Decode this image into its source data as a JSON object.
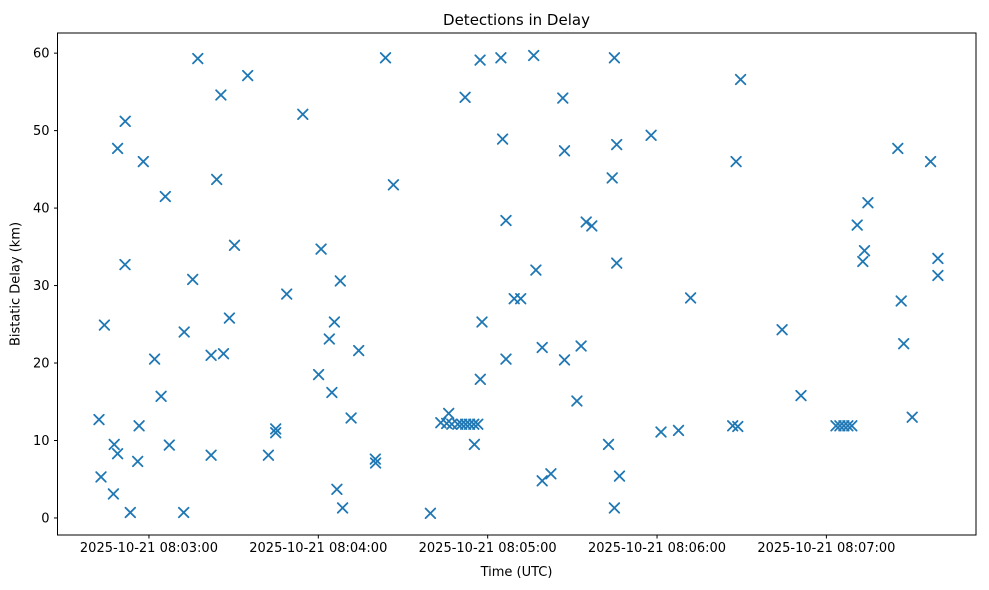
{
  "chart_data": {
    "type": "scatter",
    "title": "Detections in Delay",
    "xlabel": "Time (UTC)",
    "ylabel": "Bistatic Delay (km)",
    "grid": false,
    "legend": false,
    "marker": {
      "style": "x",
      "color": "#1f77b4"
    },
    "x_axis": {
      "unit": "seconds after 2025-10-21 08:03:00 UTC",
      "range": [
        -32.4,
        293.0
      ],
      "tick_values": [
        0,
        60,
        120,
        180,
        240
      ],
      "tick_labels": [
        "2025-10-21 08:03:00",
        "2025-10-21 08:04:00",
        "2025-10-21 08:05:00",
        "2025-10-21 08:06:00",
        "2025-10-21 08:07:00"
      ]
    },
    "y_axis": {
      "range": [
        -2.2,
        62.6
      ],
      "tick_values": [
        0,
        10,
        20,
        30,
        40,
        50,
        60
      ],
      "tick_labels": [
        "0",
        "10",
        "20",
        "30",
        "40",
        "50",
        "60"
      ]
    },
    "points": [
      [
        17.3,
        59.3
      ],
      [
        35.0,
        57.1
      ],
      [
        25.5,
        54.6
      ],
      [
        -8.4,
        51.2
      ],
      [
        -11.1,
        47.7
      ],
      [
        -2.0,
        46.0
      ],
      [
        24.0,
        43.7
      ],
      [
        5.8,
        41.5
      ],
      [
        30.3,
        35.2
      ],
      [
        -8.5,
        32.7
      ],
      [
        15.5,
        30.8
      ],
      [
        48.8,
        28.9
      ],
      [
        28.5,
        25.8
      ],
      [
        -15.8,
        24.9
      ],
      [
        12.5,
        24.0
      ],
      [
        22.0,
        21.0
      ],
      [
        26.4,
        21.2
      ],
      [
        2.0,
        20.5
      ],
      [
        4.3,
        15.7
      ],
      [
        -17.7,
        12.7
      ],
      [
        -3.5,
        11.9
      ],
      [
        44.9,
        11.5
      ],
      [
        44.9,
        11.0
      ],
      [
        -12.3,
        9.5
      ],
      [
        7.2,
        9.4
      ],
      [
        -11.1,
        8.3
      ],
      [
        22.0,
        8.1
      ],
      [
        42.3,
        8.1
      ],
      [
        -4.0,
        7.3
      ],
      [
        -17.0,
        5.3
      ],
      [
        -12.6,
        3.1
      ],
      [
        -6.6,
        0.7
      ],
      [
        12.3,
        0.7
      ],
      [
        83.8,
        59.4
      ],
      [
        117.3,
        59.1
      ],
      [
        124.7,
        59.4
      ],
      [
        112.0,
        54.3
      ],
      [
        54.5,
        52.1
      ],
      [
        125.3,
        48.9
      ],
      [
        86.6,
        43.0
      ],
      [
        126.5,
        38.4
      ],
      [
        61.0,
        34.7
      ],
      [
        67.8,
        30.6
      ],
      [
        129.4,
        28.3
      ],
      [
        131.7,
        28.3
      ],
      [
        65.7,
        25.3
      ],
      [
        118.0,
        25.3
      ],
      [
        63.9,
        23.1
      ],
      [
        74.3,
        21.6
      ],
      [
        126.5,
        20.5
      ],
      [
        60.1,
        18.5
      ],
      [
        117.4,
        17.9
      ],
      [
        64.8,
        16.2
      ],
      [
        71.6,
        12.9
      ],
      [
        106.2,
        13.5
      ],
      [
        103.4,
        12.3
      ],
      [
        105.5,
        12.2
      ],
      [
        107.3,
        12.1
      ],
      [
        109.4,
        12.1
      ],
      [
        110.8,
        12.1
      ],
      [
        112.2,
        12.1
      ],
      [
        113.6,
        12.1
      ],
      [
        115.1,
        12.1
      ],
      [
        116.5,
        12.1
      ],
      [
        115.3,
        9.5
      ],
      [
        80.2,
        7.6
      ],
      [
        80.3,
        7.1
      ],
      [
        66.6,
        3.7
      ],
      [
        68.6,
        1.3
      ],
      [
        99.7,
        0.6
      ],
      [
        136.3,
        59.7
      ],
      [
        164.9,
        59.4
      ],
      [
        209.6,
        56.6
      ],
      [
        146.6,
        54.2
      ],
      [
        177.9,
        49.4
      ],
      [
        165.7,
        48.2
      ],
      [
        147.2,
        47.4
      ],
      [
        208.0,
        46.0
      ],
      [
        164.1,
        43.9
      ],
      [
        154.9,
        38.2
      ],
      [
        156.9,
        37.7
      ],
      [
        165.7,
        32.9
      ],
      [
        137.1,
        32.0
      ],
      [
        191.9,
        28.4
      ],
      [
        139.3,
        22.0
      ],
      [
        153.1,
        22.2
      ],
      [
        147.2,
        20.4
      ],
      [
        151.6,
        15.1
      ],
      [
        181.4,
        11.1
      ],
      [
        187.6,
        11.3
      ],
      [
        206.8,
        11.9
      ],
      [
        208.6,
        11.8
      ],
      [
        162.8,
        9.5
      ],
      [
        142.4,
        5.7
      ],
      [
        139.3,
        4.8
      ],
      [
        166.7,
        5.4
      ],
      [
        164.9,
        1.3
      ],
      [
        265.3,
        47.7
      ],
      [
        276.9,
        46.0
      ],
      [
        254.7,
        40.7
      ],
      [
        250.9,
        37.8
      ],
      [
        253.5,
        34.5
      ],
      [
        252.9,
        33.1
      ],
      [
        279.5,
        33.5
      ],
      [
        279.5,
        31.3
      ],
      [
        266.5,
        28.0
      ],
      [
        224.3,
        24.3
      ],
      [
        267.4,
        22.5
      ],
      [
        231.0,
        15.8
      ],
      [
        270.4,
        13.0
      ],
      [
        243.4,
        11.9
      ],
      [
        244.8,
        11.9
      ],
      [
        246.2,
        11.9
      ],
      [
        247.6,
        11.9
      ],
      [
        249.0,
        11.9
      ]
    ]
  }
}
